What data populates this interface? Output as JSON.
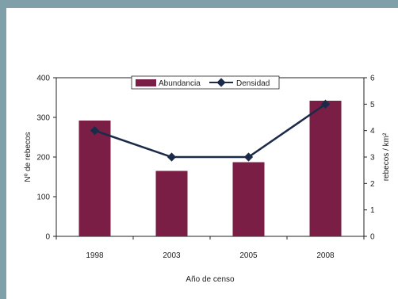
{
  "chart_data": {
    "type": "bar",
    "categories": [
      "1998",
      "2003",
      "2005",
      "2008"
    ],
    "series": [
      {
        "name": "Abundancia",
        "type": "bar",
        "axis": "left",
        "values": [
          292,
          165,
          187,
          342
        ]
      },
      {
        "name": "Densidad",
        "type": "line",
        "axis": "right",
        "values": [
          4.0,
          3.0,
          3.0,
          5.0
        ]
      }
    ],
    "title": "",
    "xlabel": "Año de censo",
    "ylabel": "Nº de rebecos",
    "ylabel_right": "rebecos / km²",
    "ylim": [
      0,
      400
    ],
    "ylim_right": [
      0,
      6
    ],
    "yticks": [
      "0",
      "100",
      "200",
      "300",
      "400"
    ],
    "yticks_right": [
      "0",
      "1",
      "2",
      "3",
      "4",
      "5",
      "6"
    ],
    "legend_position": "top",
    "grid": false,
    "colors": {
      "bar": "#7a1e45",
      "line": "#1b2a48",
      "background": "#7fa0a8"
    }
  }
}
